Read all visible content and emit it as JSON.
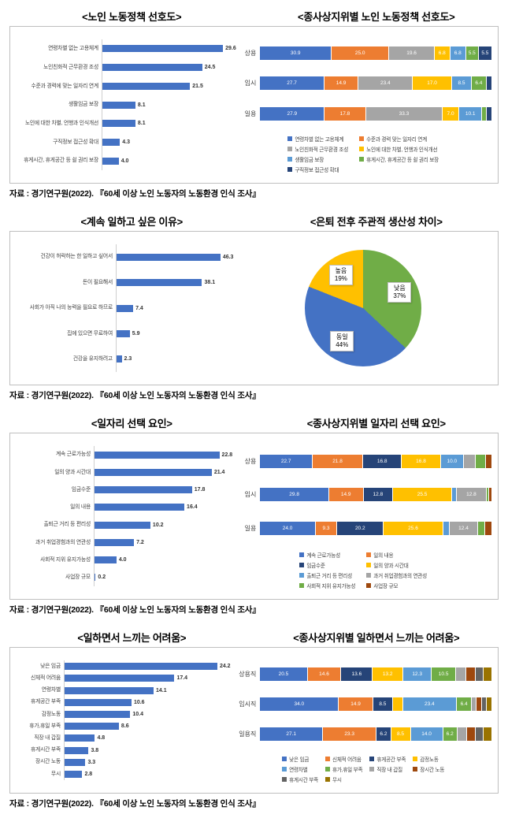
{
  "source_caption": "자료 : 경기연구원(2022). 『60세 이상 노인 노동자의 노동환경 인식 조사』",
  "colors": {
    "bar_blue": "#4472C4"
  },
  "chart_data": [
    {
      "id": "elderly-labor-policy-preference",
      "type": "bar",
      "title": "<노인 노동정책 선호도>",
      "bar_color": "#4472C4",
      "xlim": [
        0,
        31
      ],
      "categories": [
        "연령차별 없는 고용체계",
        "노인친화적 근무환경 조성",
        "수준과 경력에 맞는 일자리 연계",
        "생활임금 보장",
        "노인에 대한 차별, 언행과 인식개선",
        "구직정보 접근성 확대",
        "휴게시간, 휴게공간 등 쉴 권리 보장"
      ],
      "values": [
        29.6,
        24.5,
        21.5,
        8.1,
        8.1,
        4.3,
        4.0
      ]
    },
    {
      "id": "policy-preference-by-employment-status",
      "type": "stacked-bar",
      "title": "<종사상지위별 노인 노동정책 선호도>",
      "categories": [
        "상용",
        "임시",
        "일용"
      ],
      "series": [
        "연령차별 없는 고용체계",
        "수준과 경력 맞는 일자리 연계",
        "노인친화적 근무환경 조성",
        "노인에 대한 차별, 언행과 인식개선",
        "생활임금 보장",
        "휴게시간, 휴게공간 등 쉴 권리 보장",
        "구직정보 접근성 확대"
      ],
      "palette": [
        "#4472C4",
        "#ED7D31",
        "#A5A5A5",
        "#FFC000",
        "#5B9BD5",
        "#70AD47",
        "#264478"
      ],
      "legend_cols": 2,
      "rows": [
        [
          {
            "v": 30.9,
            "t": "30.9"
          },
          {
            "v": 25.0,
            "t": "25.0"
          },
          {
            "v": 19.6,
            "t": "19.6"
          },
          {
            "v": 6.8,
            "t": "6.8"
          },
          {
            "v": 6.8,
            "t": "6.8"
          },
          {
            "v": 5.5,
            "t": "5.5"
          },
          {
            "v": 5.5,
            "t": "5.5"
          }
        ],
        [
          {
            "v": 27.7,
            "t": "27.7"
          },
          {
            "v": 14.9,
            "t": "14.9"
          },
          {
            "v": 23.4,
            "t": "23.4"
          },
          {
            "v": 17.0,
            "t": "17.0"
          },
          {
            "v": 8.5,
            "t": "8.5"
          },
          {
            "v": 6.4,
            "t": "6.4"
          },
          {
            "v": 2.1,
            "t": ""
          }
        ],
        [
          {
            "v": 27.9,
            "t": "27.9"
          },
          {
            "v": 17.8,
            "t": "17.8"
          },
          {
            "v": 33.3,
            "t": "33.3"
          },
          {
            "v": 7.0,
            "t": "7.0"
          },
          {
            "v": 10.1,
            "t": "10.1"
          },
          {
            "v": 2.0,
            "t": ""
          },
          {
            "v": 1.9,
            "t": ""
          }
        ]
      ]
    },
    {
      "id": "reasons-to-keep-working",
      "type": "bar",
      "title": "<계속 일하고 싶은 이유>",
      "bar_color": "#4472C4",
      "xlim": [
        0,
        50
      ],
      "categories": [
        "건강이 허락하는 한 일하고 싶어서",
        "돈이 필요해서",
        "사회가 아직 나의 능력을 필요로 하므로",
        "집에 있으면 무료하여",
        "건강을 유지하려고"
      ],
      "values": [
        46.3,
        38.1,
        7.4,
        5.9,
        2.3
      ]
    },
    {
      "id": "subjective-productivity-before-after-retirement",
      "type": "pie",
      "title": "<은퇴 전후 주관적 생산성 차이>",
      "slices": [
        {
          "label": "낮음",
          "pct": 37,
          "color": "#70AD47"
        },
        {
          "label": "동일",
          "pct": 44,
          "color": "#4472C4"
        },
        {
          "label": "높음",
          "pct": 19,
          "color": "#FFC000"
        }
      ]
    },
    {
      "id": "job-selection-factors",
      "type": "bar",
      "title": "<일자리 선택 요인>",
      "bar_color": "#4472C4",
      "xlim": [
        0,
        24.5
      ],
      "categories": [
        "계속 근로가능성",
        "일의 양과 시간대",
        "임금수준",
        "일의 내용",
        "출퇴근 거리 등 편리성",
        "과거 취업경험과의 연관성",
        "사회적 지위 유지가능성",
        "사업장 규모"
      ],
      "values": [
        22.8,
        21.4,
        17.8,
        16.4,
        10.2,
        7.2,
        4.0,
        0.2
      ]
    },
    {
      "id": "job-selection-factors-by-employment-status",
      "type": "stacked-bar",
      "title": "<종사상지위별 일자리 선택 요인>",
      "categories": [
        "상용",
        "임시",
        "일용"
      ],
      "series": [
        "계속 근로가능성",
        "일의 내용",
        "임금수준",
        "일의 양과 시간대",
        "출퇴근 거리 등 편리성",
        "과거 취업경험과의 연관성",
        "사회적 지위 유지가능성",
        "사업장 규모"
      ],
      "palette": [
        "#4472C4",
        "#ED7D31",
        "#264478",
        "#FFC000",
        "#5B9BD5",
        "#A5A5A5",
        "#70AD47",
        "#9E480E"
      ],
      "legend_cols": 2,
      "rows": [
        [
          {
            "v": 22.7,
            "t": "22.7"
          },
          {
            "v": 21.8,
            "t": "21.8"
          },
          {
            "v": 16.8,
            "t": "16.8"
          },
          {
            "v": 16.8,
            "t": "16.8"
          },
          {
            "v": 10.0,
            "t": "10.0"
          },
          {
            "v": 5.0,
            "t": ""
          },
          {
            "v": 4.4,
            "t": ""
          },
          {
            "v": 2.5,
            "t": ""
          }
        ],
        [
          {
            "v": 29.8,
            "t": "29.8"
          },
          {
            "v": 14.9,
            "t": "14.9"
          },
          {
            "v": 12.8,
            "t": "12.8"
          },
          {
            "v": 25.5,
            "t": "25.5"
          },
          {
            "v": 2.1,
            "t": ""
          },
          {
            "v": 12.8,
            "t": "12.8"
          },
          {
            "v": 1.0,
            "t": ""
          },
          {
            "v": 1.1,
            "t": ""
          }
        ],
        [
          {
            "v": 24.0,
            "t": "24.0"
          },
          {
            "v": 9.3,
            "t": "9.3"
          },
          {
            "v": 20.2,
            "t": "20.2"
          },
          {
            "v": 25.6,
            "t": "25.6"
          },
          {
            "v": 2.8,
            "t": ""
          },
          {
            "v": 12.4,
            "t": "12.4"
          },
          {
            "v": 3.0,
            "t": ""
          },
          {
            "v": 2.7,
            "t": ""
          }
        ]
      ]
    },
    {
      "id": "difficulties-while-working",
      "type": "bar",
      "title": "<일하면서 느끼는 어려움>",
      "bar_color": "#4472C4",
      "xlim": [
        0,
        26
      ],
      "categories": [
        "낮은 임금",
        "신체적 어려움",
        "연령차별",
        "휴게공간 부족",
        "감정노동",
        "휴가,휴일 부족",
        "직장 내 갑질",
        "휴게시간 부족",
        "장시간 노동",
        "무시"
      ],
      "values": [
        24.2,
        17.4,
        14.1,
        10.6,
        10.4,
        8.6,
        4.8,
        3.8,
        3.3,
        2.8
      ]
    },
    {
      "id": "difficulties-by-employment-status",
      "type": "stacked-bar",
      "title": "<종사상지위별 일하면서 느끼는 어려움>",
      "categories": [
        "상용직",
        "임시직",
        "일용직"
      ],
      "series": [
        "낮은 임금",
        "신체적 어려움",
        "휴게공간 부족",
        "감정노동",
        "연령차별",
        "휴가,휴일 부족",
        "직장 내 갑질",
        "장시간 노동",
        "휴게시간 부족",
        "무시"
      ],
      "palette": [
        "#4472C4",
        "#ED7D31",
        "#264478",
        "#FFC000",
        "#5B9BD5",
        "#70AD47",
        "#A5A5A5",
        "#9E480E",
        "#636363",
        "#997300"
      ],
      "legend_cols": 4,
      "rows": [
        [
          {
            "v": 20.5,
            "t": "20.5"
          },
          {
            "v": 14.6,
            "t": "14.6"
          },
          {
            "v": 13.6,
            "t": "13.6"
          },
          {
            "v": 13.2,
            "t": "13.2"
          },
          {
            "v": 12.3,
            "t": "12.3"
          },
          {
            "v": 10.5,
            "t": "10.5"
          },
          {
            "v": 4.5,
            "t": ""
          },
          {
            "v": 4.0,
            "t": ""
          },
          {
            "v": 3.5,
            "t": ""
          },
          {
            "v": 3.3,
            "t": ""
          }
        ],
        [
          {
            "v": 34.0,
            "t": "34.0"
          },
          {
            "v": 14.9,
            "t": "14.9"
          },
          {
            "v": 8.5,
            "t": "8.5"
          },
          {
            "v": 4.3,
            "t": ""
          },
          {
            "v": 23.4,
            "t": "23.4"
          },
          {
            "v": 6.4,
            "t": "6.4"
          },
          {
            "v": 2.2,
            "t": ""
          },
          {
            "v": 2.1,
            "t": ""
          },
          {
            "v": 2.1,
            "t": ""
          },
          {
            "v": 2.1,
            "t": ""
          }
        ],
        [
          {
            "v": 27.1,
            "t": "27.1"
          },
          {
            "v": 23.3,
            "t": "23.3"
          },
          {
            "v": 6.2,
            "t": "6.2"
          },
          {
            "v": 8.5,
            "t": "8.5"
          },
          {
            "v": 14.0,
            "t": "14.0"
          },
          {
            "v": 6.2,
            "t": "6.2"
          },
          {
            "v": 4.0,
            "t": ""
          },
          {
            "v": 3.8,
            "t": ""
          },
          {
            "v": 3.5,
            "t": ""
          },
          {
            "v": 3.4,
            "t": ""
          }
        ]
      ]
    }
  ]
}
